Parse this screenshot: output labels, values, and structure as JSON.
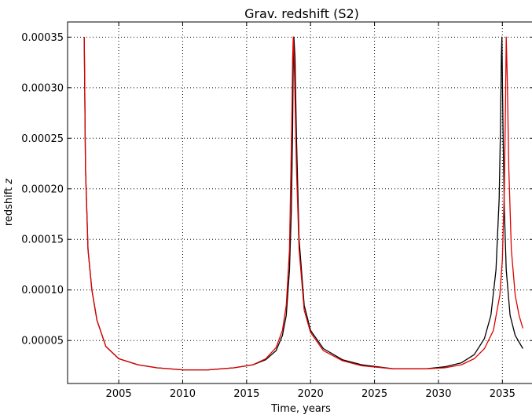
{
  "chart_data": {
    "type": "line",
    "title": "Grav. redshift (S2)",
    "xlabel": "Time, years",
    "ylabel": "redshift z",
    "xlim": [
      2001.0,
      2037.5
    ],
    "ylim": [
      7.5e-06,
      0.000365
    ],
    "grid": true,
    "legend": false,
    "x_ticks": [
      2005,
      2010,
      2015,
      2020,
      2025,
      2030,
      2035
    ],
    "x_tick_labels": [
      "2005",
      "2010",
      "2015",
      "2020",
      "2025",
      "2030",
      "2035"
    ],
    "y_ticks": [
      5e-05,
      0.0001,
      0.00015,
      0.0002,
      0.00025,
      0.0003,
      0.00035
    ],
    "y_tick_labels": [
      "0.00005",
      "0.00010",
      "0.00015",
      "0.00020",
      "0.00025",
      "0.00030",
      "0.00035"
    ],
    "series": [
      {
        "color": "#000000",
        "x": [
          2002.3,
          2002.4,
          2002.6,
          2002.9,
          2003.3,
          2004.0,
          2005.0,
          2006.5,
          2008.0,
          2010.0,
          2012.0,
          2014.0,
          2015.5,
          2016.5,
          2017.3,
          2017.8,
          2018.1,
          2018.35,
          2018.5,
          2018.6,
          2018.65,
          2018.7,
          2018.78,
          2018.9,
          2019.1,
          2019.5,
          2020.0,
          2021.0,
          2022.5,
          2024.0,
          2026.5,
          2029.0,
          2030.5,
          2031.8,
          2032.8,
          2033.6,
          2034.1,
          2034.5,
          2034.75,
          2034.85,
          2034.92,
          2034.96,
          2035.05,
          2035.15,
          2035.3,
          2035.6,
          2036.0,
          2036.6
        ],
        "y": [
          0.00035,
          0.00022,
          0.00014,
          0.0001,
          7e-05,
          4.4e-05,
          3.2e-05,
          2.6e-05,
          2.3e-05,
          2.1e-05,
          2.1e-05,
          2.3e-05,
          2.6e-05,
          3.1e-05,
          4e-05,
          5.5e-05,
          7.5e-05,
          0.00012,
          0.00018,
          0.00026,
          0.00033,
          0.00035,
          0.00033,
          0.00025,
          0.00015,
          8.5e-05,
          6e-05,
          4.2e-05,
          3.1e-05,
          2.6e-05,
          2.2e-05,
          2.2e-05,
          2.4e-05,
          2.8e-05,
          3.6e-05,
          5.2e-05,
          7.5e-05,
          0.00012,
          0.00019,
          0.00026,
          0.00033,
          0.00035,
          0.00026,
          0.00018,
          0.00012,
          7.5e-05,
          5.5e-05,
          4.2e-05
        ]
      },
      {
        "color": "#e00000",
        "x": [
          2002.3,
          2002.4,
          2002.6,
          2002.9,
          2003.3,
          2004.0,
          2005.0,
          2006.5,
          2008.0,
          2010.0,
          2012.0,
          2014.0,
          2015.5,
          2016.5,
          2017.3,
          2017.8,
          2018.1,
          2018.35,
          2018.45,
          2018.55,
          2018.6,
          2018.65,
          2018.75,
          2018.9,
          2019.1,
          2019.5,
          2020.0,
          2021.0,
          2022.5,
          2024.0,
          2026.5,
          2029.0,
          2030.5,
          2031.8,
          2032.8,
          2033.6,
          2034.3,
          2034.8,
          2035.0,
          2035.15,
          2035.25,
          2035.3,
          2035.38,
          2035.5,
          2035.7,
          2036.0,
          2036.3,
          2036.6
        ],
        "y": [
          0.00035,
          0.00022,
          0.00014,
          0.0001,
          7e-05,
          4.4e-05,
          3.2e-05,
          2.6e-05,
          2.3e-05,
          2.1e-05,
          2.1e-05,
          2.3e-05,
          2.6e-05,
          3.2e-05,
          4.3e-05,
          6e-05,
          8.5e-05,
          0.00014,
          0.00021,
          0.00028,
          0.00033,
          0.00035,
          0.00031,
          0.00022,
          0.00014,
          8e-05,
          5.8e-05,
          4e-05,
          3e-05,
          2.5e-05,
          2.2e-05,
          2.2e-05,
          2.3e-05,
          2.6e-05,
          3.2e-05,
          4.2e-05,
          6e-05,
          9.5e-05,
          0.00013,
          0.0002,
          0.00029,
          0.00035,
          0.00031,
          0.00022,
          0.00014,
          9.5e-05,
          7.5e-05,
          6.2e-05
        ]
      }
    ]
  }
}
